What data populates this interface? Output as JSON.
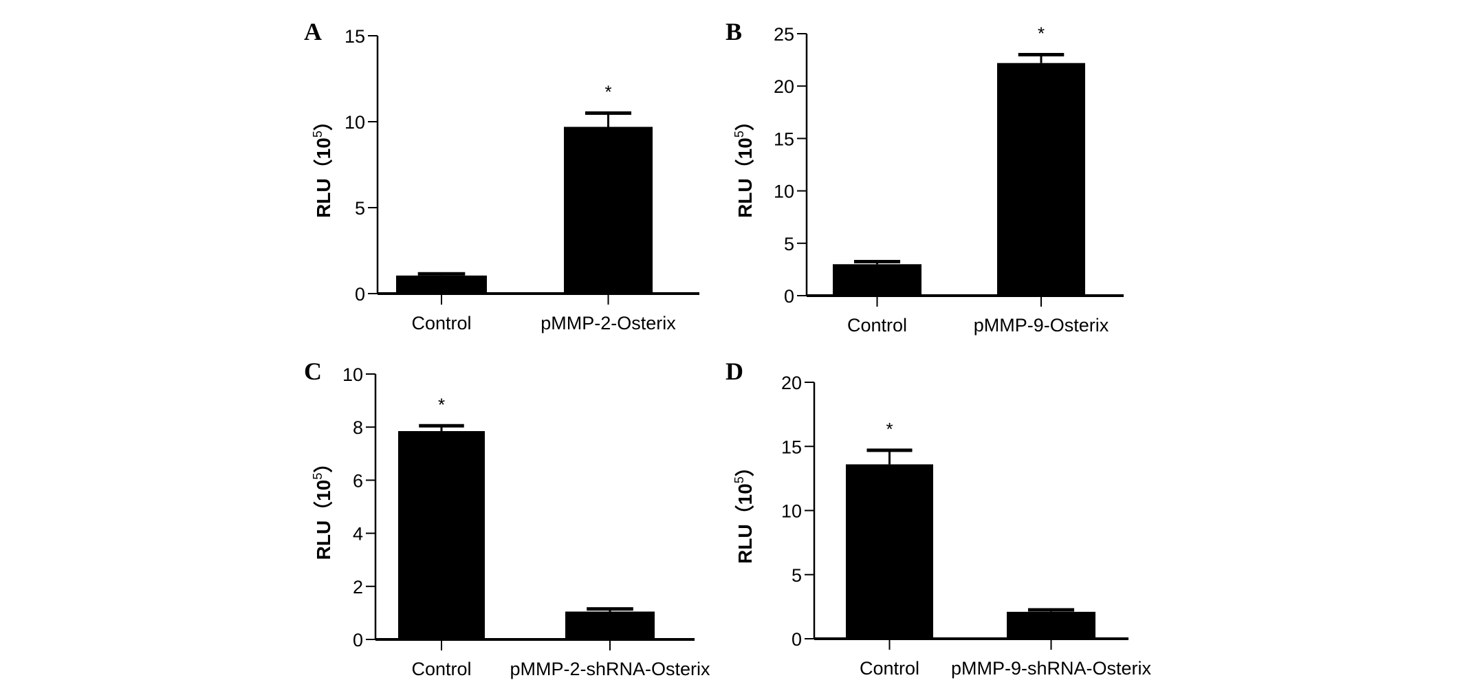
{
  "chart_data": [
    {
      "type": "bar",
      "panel": "A",
      "categories": [
        "Control",
        "pMMP-2-Osterix"
      ],
      "values": [
        1.05,
        9.7
      ],
      "error": [
        0.1,
        0.8
      ],
      "significance": [
        "",
        "*"
      ],
      "ylabel": {
        "main": "RLU（10",
        "sup": "5",
        "close": "）"
      },
      "ylim": [
        0,
        15
      ],
      "yticks": [
        0,
        5,
        10,
        15
      ]
    },
    {
      "type": "bar",
      "panel": "B",
      "categories": [
        "Control",
        "pMMP-9-Osterix"
      ],
      "values": [
        3.0,
        22.2
      ],
      "error": [
        0.25,
        0.8
      ],
      "significance": [
        "",
        "*"
      ],
      "ylabel": {
        "main": "RLU（10",
        "sup": "5",
        "close": "）"
      },
      "ylim": [
        0,
        25
      ],
      "yticks": [
        0,
        5,
        10,
        15,
        20,
        25
      ]
    },
    {
      "type": "bar",
      "panel": "C",
      "categories": [
        "Control",
        "pMMP-2-shRNA-Osterix"
      ],
      "values": [
        7.85,
        1.05
      ],
      "error": [
        0.2,
        0.1
      ],
      "significance": [
        "*",
        ""
      ],
      "ylabel": {
        "main": "RLU（10",
        "sup": "5",
        "close": "）"
      },
      "ylim": [
        0,
        10
      ],
      "yticks": [
        0,
        2,
        4,
        6,
        8,
        10
      ]
    },
    {
      "type": "bar",
      "panel": "D",
      "categories": [
        "Control",
        "pMMP-9-shRNA-Osterix"
      ],
      "values": [
        13.6,
        2.1
      ],
      "error": [
        1.1,
        0.15
      ],
      "significance": [
        "*",
        ""
      ],
      "ylabel": {
        "main": "RLU（10",
        "sup": "5",
        "close": "）"
      },
      "ylim": [
        0,
        20
      ],
      "yticks": [
        0,
        5,
        10,
        15,
        20
      ]
    }
  ]
}
